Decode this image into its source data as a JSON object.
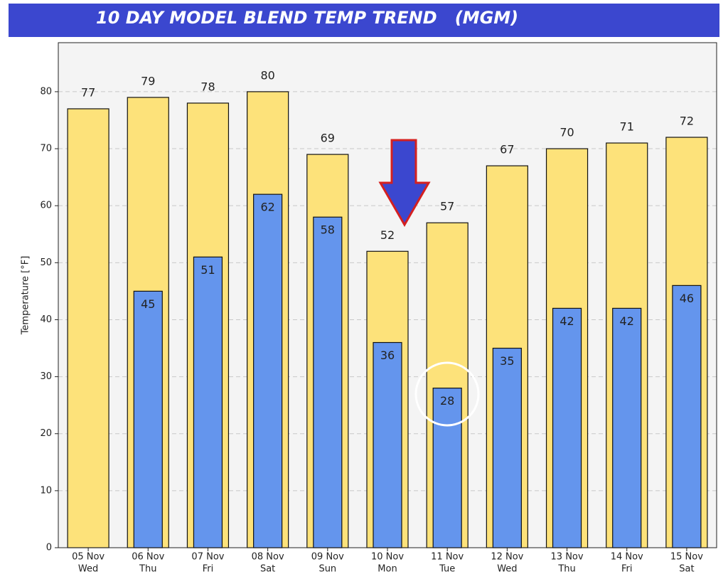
{
  "chart_data": {
    "type": "bar",
    "title": "10 DAY MODEL BLEND TEMP TREND   (MGM)",
    "y_label": "Temperature [°F]",
    "categories": [
      "05 Nov",
      "06 Nov",
      "07 Nov",
      "08 Nov",
      "09 Nov",
      "10 Nov",
      "11 Nov",
      "12 Nov",
      "13 Nov",
      "14 Nov",
      "15 Nov"
    ],
    "category_days": [
      "Wed",
      "Thu",
      "Fri",
      "Sat",
      "Sun",
      "Mon",
      "Tue",
      "Wed",
      "Thu",
      "Fri",
      "Sat"
    ],
    "series": [
      {
        "color": "#fde27a",
        "values": [
          77,
          79,
          78,
          80,
          69,
          52,
          57,
          67,
          70,
          71,
          72
        ]
      },
      {
        "color": "#6495ed",
        "values": [
          null,
          45,
          51,
          62,
          58,
          36,
          28,
          35,
          42,
          42,
          46
        ]
      }
    ],
    "ylim": [
      0,
      88.6
    ],
    "yticks": [
      0,
      10,
      20,
      30,
      40,
      50,
      60,
      70,
      80
    ],
    "grid": true
  }
}
